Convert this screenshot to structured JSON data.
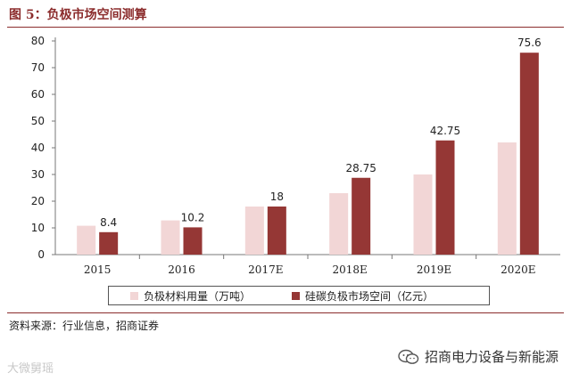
{
  "header": {
    "title": "图 5：负极市场空间测算"
  },
  "chart_data": {
    "type": "bar",
    "categories": [
      "2015",
      "2016",
      "2017E",
      "2018E",
      "2019E",
      "2020E"
    ],
    "series": [
      {
        "name": "负极材料用量（万吨）",
        "color": "#f2d6d6",
        "values": [
          10.8,
          12.8,
          18.0,
          23.0,
          30.0,
          42.0
        ]
      },
      {
        "name": "硅碳负极市场空间（亿元）",
        "color": "#953735",
        "values": [
          8.4,
          10.2,
          18,
          28.75,
          42.75,
          75.6
        ],
        "labels": [
          "8.4",
          "10.2",
          "18",
          "28.75",
          "42.75",
          "75.6"
        ]
      }
    ],
    "ylim": [
      0,
      80
    ],
    "yticks": [
      "0",
      "10",
      "20",
      "30",
      "40",
      "50",
      "60",
      "70",
      "80"
    ],
    "grid": false,
    "legend_position": "bottom"
  },
  "footer": {
    "source": "资料来源：行业信息，招商证券",
    "watermark": "大微舅瑶",
    "account": "招商电力设备与新能源"
  }
}
